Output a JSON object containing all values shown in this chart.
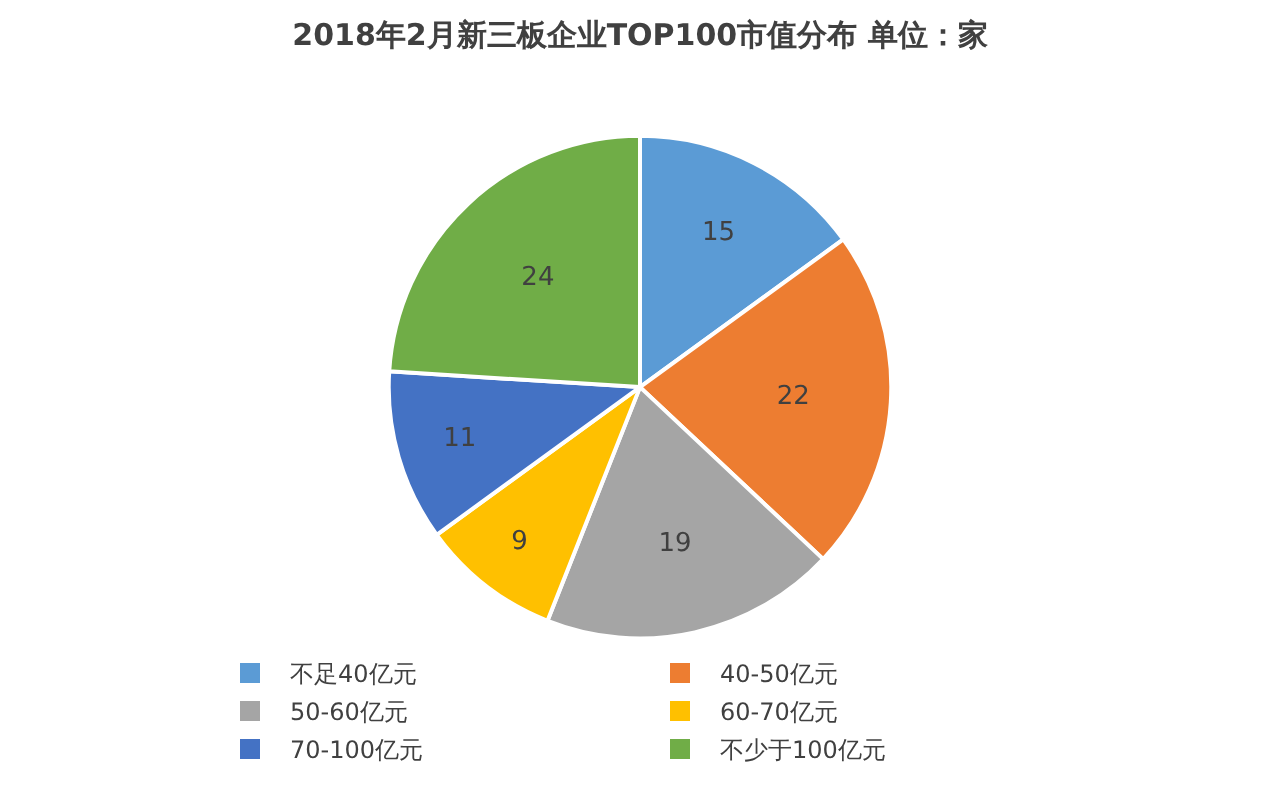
{
  "chart_data": {
    "type": "pie",
    "title": "2018年2月新三板企业TOP100市值分布 单位：家",
    "categories": [
      "不足40亿元",
      "40-50亿元",
      "50-60亿元",
      "60-70亿元",
      "70-100亿元",
      "不少于100亿元"
    ],
    "values": [
      15,
      22,
      19,
      9,
      11,
      24
    ],
    "colors": [
      "#5b9bd5",
      "#ed7d31",
      "#a5a5a5",
      "#ffc000",
      "#4472c4",
      "#70ad47"
    ],
    "data_labels": true,
    "legend": "bottom"
  }
}
